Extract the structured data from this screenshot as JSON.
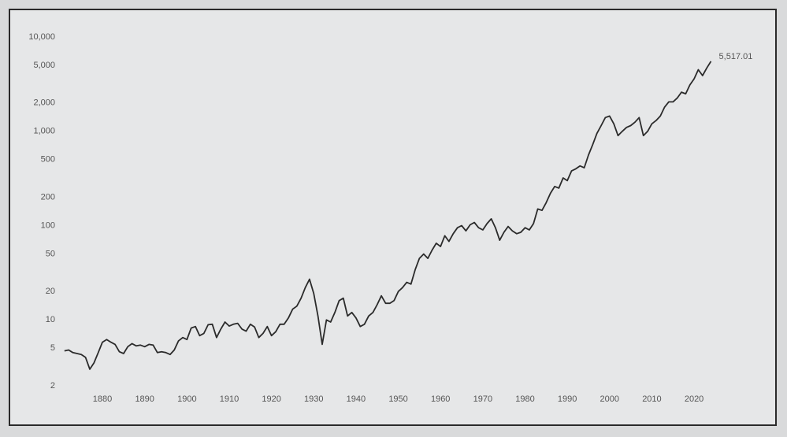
{
  "chart_data": {
    "type": "line",
    "log_y": true,
    "color": "#2b2b2b",
    "x": [
      1871,
      1872,
      1873,
      1874,
      1875,
      1876,
      1877,
      1878,
      1879,
      1880,
      1881,
      1882,
      1883,
      1884,
      1885,
      1886,
      1887,
      1888,
      1889,
      1890,
      1891,
      1892,
      1893,
      1894,
      1895,
      1896,
      1897,
      1898,
      1899,
      1900,
      1901,
      1902,
      1903,
      1904,
      1905,
      1906,
      1907,
      1908,
      1909,
      1910,
      1911,
      1912,
      1913,
      1914,
      1915,
      1916,
      1917,
      1918,
      1919,
      1920,
      1921,
      1922,
      1923,
      1924,
      1925,
      1926,
      1927,
      1928,
      1929,
      1930,
      1931,
      1932,
      1933,
      1934,
      1935,
      1936,
      1937,
      1938,
      1939,
      1940,
      1941,
      1942,
      1943,
      1944,
      1945,
      1946,
      1947,
      1948,
      1949,
      1950,
      1951,
      1952,
      1953,
      1954,
      1955,
      1956,
      1957,
      1958,
      1959,
      1960,
      1961,
      1962,
      1963,
      1964,
      1965,
      1966,
      1967,
      1968,
      1969,
      1970,
      1971,
      1972,
      1973,
      1974,
      1975,
      1976,
      1977,
      1978,
      1979,
      1980,
      1981,
      1982,
      1983,
      1984,
      1985,
      1986,
      1987,
      1988,
      1989,
      1990,
      1991,
      1992,
      1993,
      1994,
      1995,
      1996,
      1997,
      1998,
      1999,
      2000,
      2001,
      2002,
      2003,
      2004,
      2005,
      2006,
      2007,
      2008,
      2009,
      2010,
      2011,
      2012,
      2013,
      2014,
      2015,
      2016,
      2017,
      2018,
      2019,
      2020,
      2021,
      2022,
      2023,
      2024
    ],
    "values": [
      4.7,
      4.8,
      4.5,
      4.4,
      4.3,
      4.0,
      3.0,
      3.5,
      4.5,
      5.8,
      6.2,
      5.8,
      5.5,
      4.6,
      4.4,
      5.2,
      5.6,
      5.3,
      5.4,
      5.2,
      5.5,
      5.4,
      4.5,
      4.6,
      4.5,
      4.3,
      4.8,
      6.0,
      6.5,
      6.2,
      8.2,
      8.5,
      6.8,
      7.2,
      8.9,
      9.0,
      6.5,
      8.0,
      9.5,
      8.6,
      9.0,
      9.2,
      8.0,
      7.6,
      9.0,
      8.4,
      6.5,
      7.2,
      8.5,
      6.8,
      7.5,
      9.0,
      9.0,
      10.5,
      13,
      14,
      17,
      22,
      27,
      19,
      11,
      5.5,
      10,
      9.5,
      12,
      16,
      17,
      11,
      12,
      10.5,
      8.5,
      9,
      11,
      12,
      14.5,
      18,
      15,
      15,
      16,
      20,
      22,
      25,
      24,
      34,
      45,
      50,
      45,
      55,
      65,
      60,
      78,
      68,
      82,
      95,
      100,
      88,
      102,
      108,
      95,
      90,
      105,
      118,
      95,
      70,
      85,
      98,
      88,
      82,
      85,
      95,
      90,
      105,
      150,
      145,
      175,
      220,
      260,
      250,
      320,
      300,
      380,
      400,
      430,
      410,
      560,
      720,
      950,
      1150,
      1400,
      1450,
      1200,
      900,
      1000,
      1100,
      1150,
      1250,
      1400,
      900,
      1000,
      1200,
      1300,
      1450,
      1800,
      2050,
      2050,
      2250,
      2600,
      2500,
      3100,
      3600,
      4500,
      3900,
      4700,
      5517.01
    ],
    "value_labels": [
      null,
      null,
      null,
      null,
      null,
      null,
      null,
      null,
      null,
      null,
      null,
      null,
      null,
      null,
      null,
      null,
      null,
      null,
      null,
      null,
      null,
      null,
      null,
      null,
      null,
      null,
      null,
      null,
      null,
      null,
      null,
      null,
      null,
      null,
      null,
      null,
      null,
      null,
      null,
      null,
      null,
      null,
      null,
      null,
      null,
      null,
      null,
      null,
      null,
      null,
      null,
      null,
      null,
      null,
      null,
      null,
      null,
      null,
      null,
      null,
      null,
      null,
      null,
      null,
      null,
      null,
      null,
      null,
      null,
      null,
      null,
      null,
      null,
      null,
      null,
      null,
      null,
      null,
      null,
      null,
      null,
      null,
      null,
      null,
      null,
      null,
      null,
      null,
      null,
      null,
      null,
      null,
      null,
      null,
      null,
      null,
      null,
      null,
      null,
      null,
      null,
      null,
      null,
      null,
      null,
      null,
      null,
      null,
      null,
      null,
      null,
      null,
      null,
      null,
      null,
      null,
      null,
      null,
      null,
      null,
      null,
      null,
      null,
      null,
      null,
      null,
      null,
      null,
      null,
      null,
      null,
      null,
      null,
      null,
      null,
      null,
      null,
      null,
      null,
      null,
      null,
      null,
      null,
      null,
      null,
      null,
      null,
      null,
      null,
      null,
      null,
      null,
      null,
      "5,517.01"
    ],
    "xlim": [
      1870,
      2028
    ],
    "xticks": [
      1880,
      1890,
      1900,
      1910,
      1920,
      1930,
      1940,
      1950,
      1960,
      1970,
      1980,
      1990,
      2000,
      2010,
      2020
    ],
    "ylim": [
      2,
      10000
    ],
    "yticks": [
      2,
      5,
      10,
      20,
      50,
      100,
      200,
      500,
      {
        "value": 1000,
        "label": "1,000"
      },
      {
        "value": 2000,
        "label": "2,000"
      },
      {
        "value": 5000,
        "label": "5,000"
      },
      {
        "value": 10000,
        "label": "10,000"
      }
    ]
  }
}
